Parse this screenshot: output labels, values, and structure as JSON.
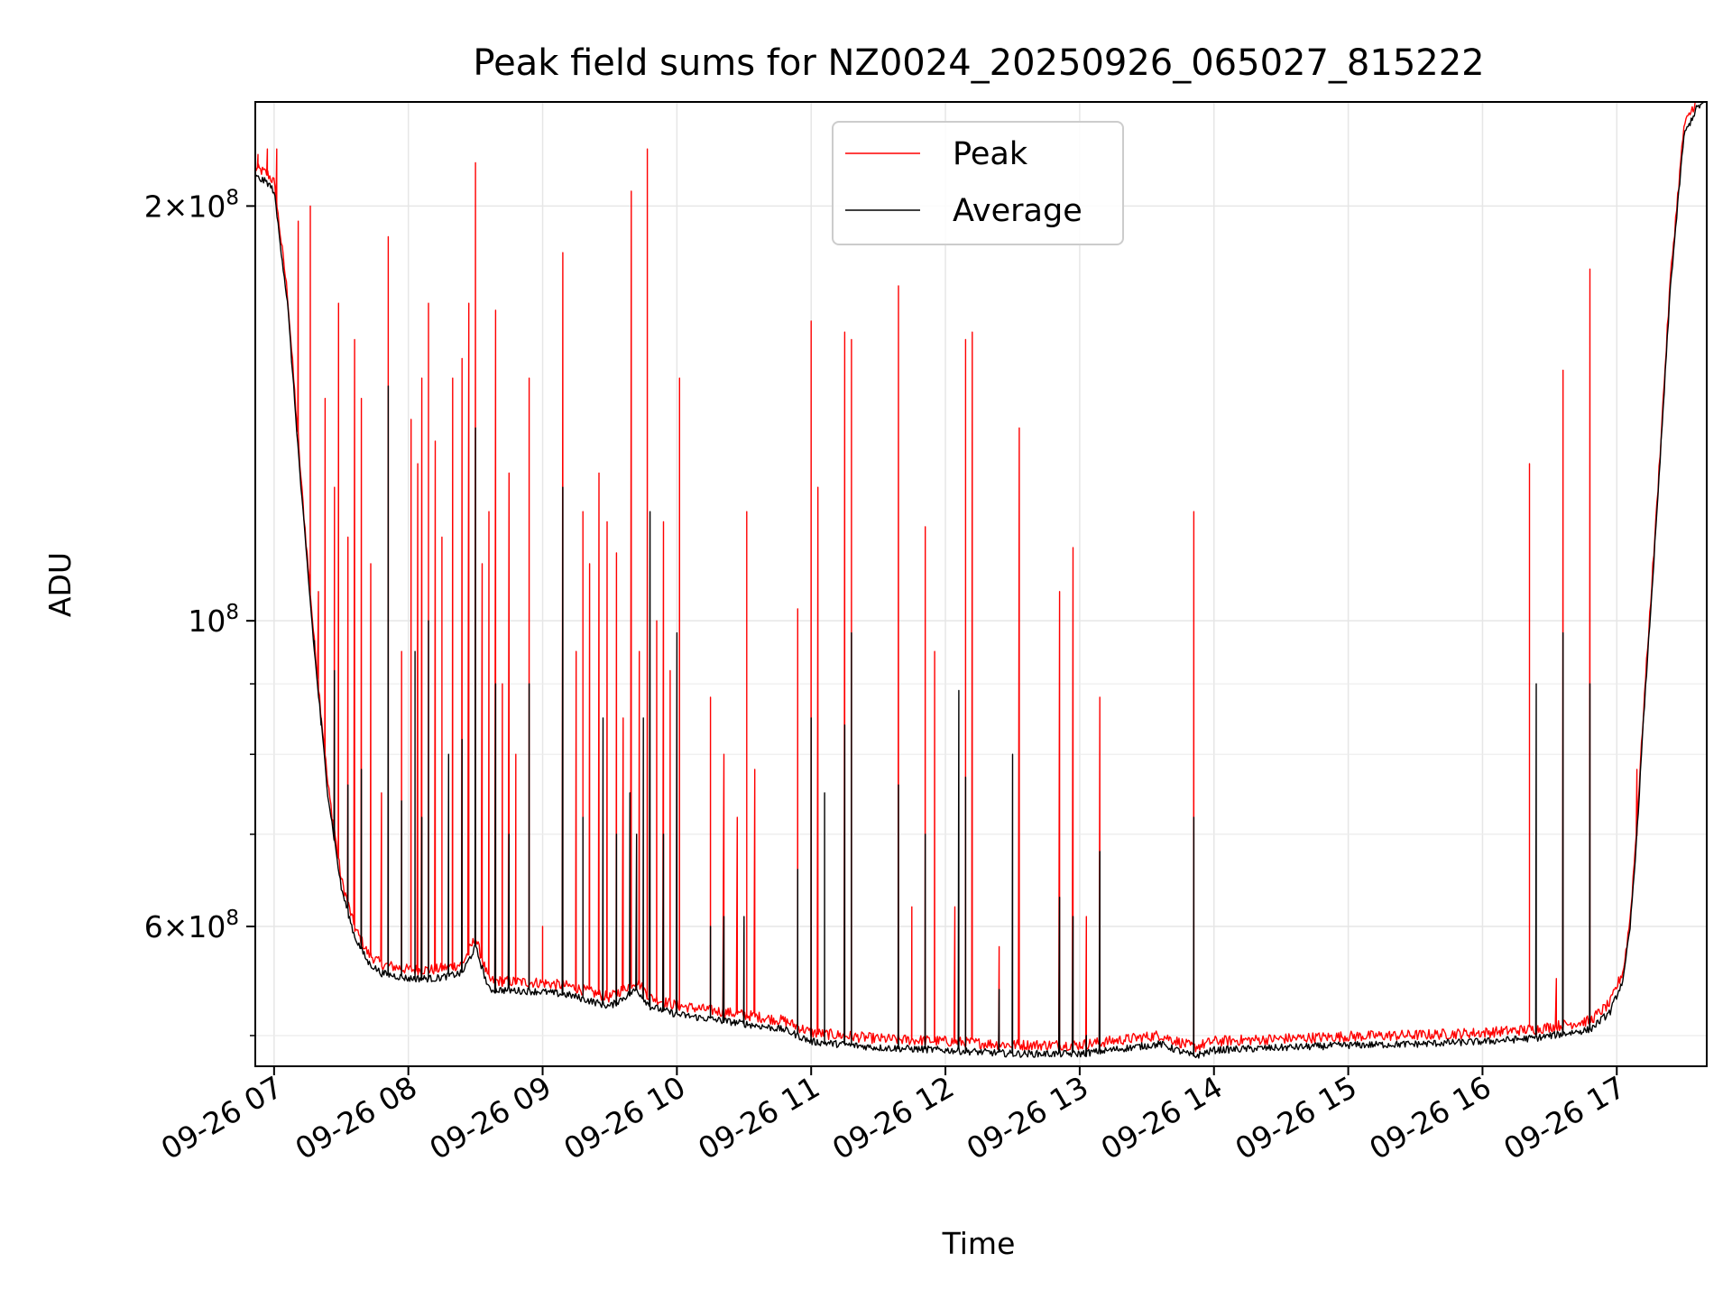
{
  "chart_data": {
    "type": "line",
    "title": "Peak field sums for NZ0024_20250926_065027_815222",
    "xlabel": "Time",
    "ylabel": "ADU",
    "yscale": "log",
    "xlim": [
      6.86,
      17.67
    ],
    "ylim": [
      47500000,
      238000000
    ],
    "x_ticks": [
      {
        "value": 7,
        "label": "09-26 07"
      },
      {
        "value": 8,
        "label": "09-26 08"
      },
      {
        "value": 9,
        "label": "09-26 09"
      },
      {
        "value": 10,
        "label": "09-26 10"
      },
      {
        "value": 11,
        "label": "09-26 11"
      },
      {
        "value": 12,
        "label": "09-26 12"
      },
      {
        "value": 13,
        "label": "09-26 13"
      },
      {
        "value": 14,
        "label": "09-26 14"
      },
      {
        "value": 15,
        "label": "09-26 15"
      },
      {
        "value": 16,
        "label": "09-26 16"
      },
      {
        "value": 17,
        "label": "09-26 17"
      }
    ],
    "y_major_ticks": [
      {
        "value": 100000000,
        "base": "10",
        "exp": "8",
        "mult": ""
      },
      {
        "value": 200000000,
        "base": "10",
        "exp": "8",
        "mult": "2"
      },
      {
        "value": 60000000,
        "base": "10",
        "exp": "8",
        "mult": "6"
      }
    ],
    "y_minor_ticks": [
      50000000,
      70000000,
      80000000,
      90000000
    ],
    "grid": true,
    "legend": {
      "position": "top-center",
      "entries": [
        {
          "label": "Peak",
          "color": "#ff0000"
        },
        {
          "label": "Average",
          "color": "#000000"
        }
      ]
    },
    "series": [
      {
        "name": "Average",
        "color": "#000000",
        "baseline_points": [
          [
            6.86,
            210000000
          ],
          [
            6.95,
            208000000
          ],
          [
            7.0,
            205000000
          ],
          [
            7.1,
            170000000
          ],
          [
            7.2,
            125000000
          ],
          [
            7.3,
            95000000
          ],
          [
            7.4,
            75000000
          ],
          [
            7.5,
            64000000
          ],
          [
            7.6,
            59000000
          ],
          [
            7.7,
            56500000
          ],
          [
            7.8,
            55500000
          ],
          [
            8.0,
            55000000
          ],
          [
            8.2,
            55000000
          ],
          [
            8.4,
            55500000
          ],
          [
            8.5,
            58000000
          ],
          [
            8.6,
            54000000
          ],
          [
            9.0,
            53800000
          ],
          [
            9.2,
            53500000
          ],
          [
            9.5,
            52500000
          ],
          [
            9.7,
            54000000
          ],
          [
            9.8,
            52500000
          ],
          [
            10.0,
            51800000
          ],
          [
            10.5,
            51000000
          ],
          [
            10.8,
            50500000
          ],
          [
            11.0,
            49500000
          ],
          [
            11.5,
            49000000
          ],
          [
            12.0,
            48800000
          ],
          [
            12.5,
            48500000
          ],
          [
            13.0,
            48500000
          ],
          [
            13.6,
            49300000
          ],
          [
            13.85,
            48300000
          ],
          [
            14.0,
            48800000
          ],
          [
            15.0,
            49200000
          ],
          [
            15.5,
            49300000
          ],
          [
            16.0,
            49500000
          ],
          [
            16.4,
            49800000
          ],
          [
            16.8,
            50500000
          ],
          [
            16.95,
            52000000
          ],
          [
            17.05,
            55000000
          ],
          [
            17.1,
            60000000
          ],
          [
            17.15,
            70000000
          ],
          [
            17.2,
            85000000
          ],
          [
            17.3,
            120000000
          ],
          [
            17.4,
            175000000
          ],
          [
            17.5,
            225000000
          ],
          [
            17.6,
            236000000
          ],
          [
            17.67,
            238000000
          ]
        ],
        "spikes": [
          [
            7.3,
            95000000
          ],
          [
            7.35,
            84000000
          ],
          [
            7.45,
            92000000
          ],
          [
            7.55,
            76000000
          ],
          [
            7.65,
            78000000
          ],
          [
            7.85,
            148000000
          ],
          [
            7.95,
            74000000
          ],
          [
            8.05,
            95000000
          ],
          [
            8.1,
            72000000
          ],
          [
            8.15,
            100000000
          ],
          [
            8.3,
            80000000
          ],
          [
            8.4,
            82000000
          ],
          [
            8.5,
            138000000
          ],
          [
            8.65,
            90000000
          ],
          [
            8.75,
            70000000
          ],
          [
            8.9,
            90000000
          ],
          [
            9.15,
            125000000
          ],
          [
            9.3,
            72000000
          ],
          [
            9.45,
            85000000
          ],
          [
            9.55,
            70000000
          ],
          [
            9.65,
            75000000
          ],
          [
            9.7,
            70000000
          ],
          [
            9.75,
            85000000
          ],
          [
            9.8,
            120000000
          ],
          [
            9.9,
            70000000
          ],
          [
            10.0,
            98000000
          ],
          [
            10.25,
            60000000
          ],
          [
            10.35,
            61000000
          ],
          [
            10.5,
            61000000
          ],
          [
            10.9,
            66000000
          ],
          [
            11.0,
            85000000
          ],
          [
            11.1,
            75000000
          ],
          [
            11.25,
            84000000
          ],
          [
            11.3,
            98000000
          ],
          [
            11.65,
            76000000
          ],
          [
            11.85,
            70000000
          ],
          [
            12.1,
            89000000
          ],
          [
            12.15,
            77000000
          ],
          [
            12.4,
            54000000
          ],
          [
            12.5,
            80000000
          ],
          [
            12.85,
            63000000
          ],
          [
            12.95,
            61000000
          ],
          [
            13.05,
            50000000
          ],
          [
            13.15,
            68000000
          ],
          [
            13.85,
            72000000
          ],
          [
            16.4,
            90000000
          ],
          [
            16.6,
            98000000
          ],
          [
            16.8,
            90000000
          ]
        ]
      },
      {
        "name": "Peak",
        "color": "#ff0000",
        "baseline_offset_pct": 1.5,
        "spikes": [
          [
            6.88,
            218000000
          ],
          [
            6.95,
            220000000
          ],
          [
            7.02,
            220000000
          ],
          [
            7.18,
            195000000
          ],
          [
            7.27,
            200000000
          ],
          [
            7.33,
            105000000
          ],
          [
            7.38,
            145000000
          ],
          [
            7.45,
            125000000
          ],
          [
            7.48,
            170000000
          ],
          [
            7.55,
            115000000
          ],
          [
            7.6,
            160000000
          ],
          [
            7.65,
            145000000
          ],
          [
            7.72,
            110000000
          ],
          [
            7.8,
            75000000
          ],
          [
            7.85,
            190000000
          ],
          [
            7.95,
            95000000
          ],
          [
            8.02,
            140000000
          ],
          [
            8.07,
            130000000
          ],
          [
            8.1,
            150000000
          ],
          [
            8.15,
            170000000
          ],
          [
            8.2,
            135000000
          ],
          [
            8.25,
            115000000
          ],
          [
            8.33,
            150000000
          ],
          [
            8.4,
            155000000
          ],
          [
            8.45,
            170000000
          ],
          [
            8.5,
            215000000
          ],
          [
            8.55,
            110000000
          ],
          [
            8.6,
            120000000
          ],
          [
            8.65,
            168000000
          ],
          [
            8.7,
            90000000
          ],
          [
            8.75,
            128000000
          ],
          [
            8.8,
            80000000
          ],
          [
            8.9,
            150000000
          ],
          [
            9.0,
            60000000
          ],
          [
            9.15,
            185000000
          ],
          [
            9.25,
            95000000
          ],
          [
            9.3,
            120000000
          ],
          [
            9.35,
            110000000
          ],
          [
            9.42,
            128000000
          ],
          [
            9.48,
            118000000
          ],
          [
            9.55,
            112000000
          ],
          [
            9.6,
            85000000
          ],
          [
            9.66,
            205000000
          ],
          [
            9.72,
            95000000
          ],
          [
            9.78,
            220000000
          ],
          [
            9.85,
            100000000
          ],
          [
            9.9,
            118000000
          ],
          [
            9.95,
            92000000
          ],
          [
            10.02,
            150000000
          ],
          [
            10.25,
            88000000
          ],
          [
            10.35,
            80000000
          ],
          [
            10.45,
            72000000
          ],
          [
            10.52,
            120000000
          ],
          [
            10.58,
            78000000
          ],
          [
            10.9,
            102000000
          ],
          [
            11.0,
            165000000
          ],
          [
            11.05,
            125000000
          ],
          [
            11.25,
            162000000
          ],
          [
            11.3,
            160000000
          ],
          [
            11.65,
            175000000
          ],
          [
            11.75,
            62000000
          ],
          [
            11.85,
            117000000
          ],
          [
            11.92,
            95000000
          ],
          [
            12.07,
            62000000
          ],
          [
            12.15,
            160000000
          ],
          [
            12.2,
            162000000
          ],
          [
            12.4,
            58000000
          ],
          [
            12.55,
            138000000
          ],
          [
            12.85,
            105000000
          ],
          [
            12.95,
            113000000
          ],
          [
            13.05,
            61000000
          ],
          [
            13.15,
            88000000
          ],
          [
            13.85,
            120000000
          ],
          [
            16.35,
            130000000
          ],
          [
            16.55,
            55000000
          ],
          [
            16.6,
            152000000
          ],
          [
            16.8,
            180000000
          ],
          [
            17.15,
            78000000
          ]
        ]
      }
    ]
  }
}
